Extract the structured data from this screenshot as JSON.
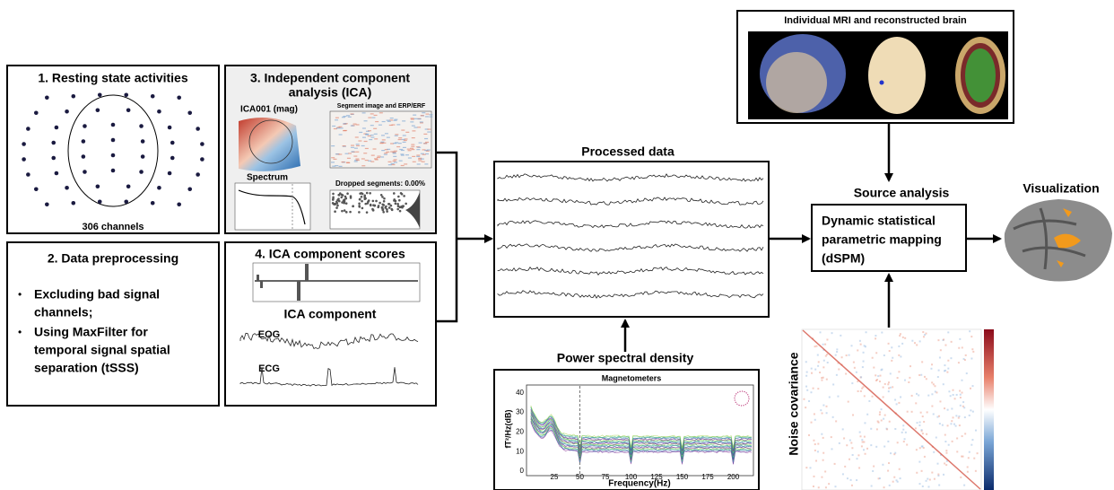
{
  "box1": {
    "title": "1. Resting state activities",
    "caption": "306 channels"
  },
  "box2": {
    "title": "2. Data preprocessing",
    "bullets": [
      [
        "Excluding bad signal",
        "channels;"
      ],
      [
        "Using MaxFilter for",
        "temporal signal spatial",
        "separation (tSSS)"
      ]
    ]
  },
  "box3": {
    "title": [
      "3. Independent component",
      "analysis (ICA)"
    ],
    "topo_label": "ICA001 (mag)",
    "segment_label": "Segment image and ERP/ERF",
    "spectrum_label": "Spectrum",
    "dropped_label": "Dropped segments: 0.00%"
  },
  "box4": {
    "title": "4. ICA component scores",
    "subtitle": "ICA component",
    "eog": "EOG",
    "ecg": "ECG"
  },
  "processed": {
    "title": "Processed data"
  },
  "psd": {
    "title": "Power spectral density",
    "plot_title": "Magnetometers",
    "y_label": "fT²/Hz(dB)",
    "x_label": "Frequency(Hz)",
    "yticks": [
      0,
      10,
      20,
      30,
      40
    ],
    "xticks": [
      25,
      50,
      75,
      100,
      125,
      150,
      175,
      200
    ]
  },
  "mri": {
    "title": "Individual MRI and reconstructed brain"
  },
  "source": {
    "label": "Source analysis",
    "box_text": [
      "Dynamic statistical",
      "parametric mapping",
      "(dSPM)"
    ]
  },
  "visualization": {
    "label": "Visualization"
  },
  "noise": {
    "label": "Noise covariance"
  }
}
